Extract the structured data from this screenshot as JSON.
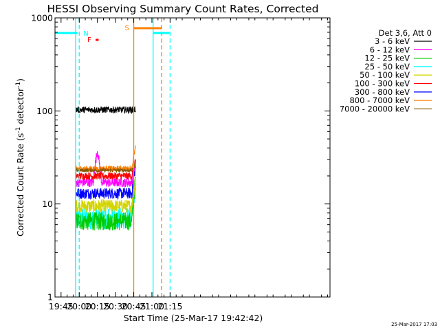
{
  "chart_data": {
    "type": "line",
    "title": "HESSI Observing Summary Count Rates, Corrected",
    "xlabel": "Start Time (25-Mar-17 19:42:42)",
    "ylabel_main": "Corrected Count Rate (s",
    "ylabel_sup1": "-1",
    "ylabel_mid": " detector",
    "ylabel_sup2": "-1",
    "ylabel_end": ")",
    "ylog": true,
    "ylim": [
      1,
      1000
    ],
    "xlim_min": [
      -5,
      222
    ],
    "x_ticks": [
      {
        "m": 0,
        "label": "19:45"
      },
      {
        "m": 15,
        "label": "20:00"
      },
      {
        "m": 30,
        "label": "20:15"
      },
      {
        "m": 45,
        "label": "20:30"
      },
      {
        "m": 60,
        "label": "20:45"
      },
      {
        "m": 75,
        "label": "21:00"
      },
      {
        "m": 90,
        "label": "21:15"
      }
    ],
    "y_ticks": [
      {
        "v": 1,
        "label": "1"
      },
      {
        "v": 10,
        "label": "10"
      },
      {
        "v": 100,
        "label": "100"
      },
      {
        "v": 1000,
        "label": "1000"
      }
    ],
    "legend_header": "Det 3,6, Att 0",
    "legend_placement": "right",
    "data_range_min": [
      12,
      61.5
    ],
    "series": [
      {
        "name": "3 - 6 keV",
        "color": "#000000",
        "start": 97,
        "level": 103,
        "noise": 0.035
      },
      {
        "name": "6 - 12 keV",
        "color": "#ff00ff",
        "start": 5,
        "level": 17,
        "noise": 0.05,
        "bump": [
          30,
          37
        ],
        "end": 28
      },
      {
        "name": "12 - 25 keV",
        "color": "#00cc00",
        "start": 4,
        "level": 6.5,
        "noise": 0.1,
        "end": 17
      },
      {
        "name": "25 - 50 keV",
        "color": "#00ffff",
        "start": 3,
        "level": 7,
        "noise": 0.12,
        "end": 16
      },
      {
        "name": "50 - 100 keV",
        "color": "#d4d400",
        "start": 4,
        "level": 9.5,
        "noise": 0.07,
        "end": 18
      },
      {
        "name": "100 - 300 keV",
        "color": "#ff0000",
        "start": 5,
        "level": 20,
        "noise": 0.04,
        "end": 30
      },
      {
        "name": "300 - 800 keV",
        "color": "#0000ff",
        "start": 2,
        "level": 13,
        "noise": 0.06,
        "end": 25
      },
      {
        "name": "800 - 7000 keV",
        "color": "#ff7f00",
        "start": 6,
        "level": 24,
        "noise": 0.03,
        "end": 40
      },
      {
        "name": "7000 - 20000 keV",
        "color": "#8b5a00",
        "start": 6,
        "level": 23,
        "noise": 0.02,
        "end": 27
      }
    ],
    "annotations": {
      "night_label": "N",
      "saa_label": "S",
      "flare_label": "F",
      "night_color": "#00ffff",
      "saa_color": "#ff7f00",
      "flare_color": "#ff0000",
      "night_bars": [
        [
          -5,
          13.5
        ],
        [
          76,
          89.5
        ]
      ],
      "night_solid_lines": [
        12,
        76
      ],
      "night_dashed_lines": [
        15,
        90
      ],
      "saa_bar": [
        60,
        83
      ],
      "saa_solid_line": 60,
      "saa_dashed_line": 83,
      "flare_bar": [
        28.5,
        31
      ]
    }
  },
  "footer_timestamp": "25-Mar-2017 17:03"
}
